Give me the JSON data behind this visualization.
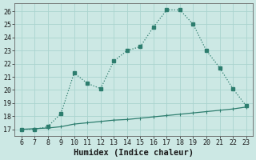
{
  "x_main": [
    6,
    7,
    8,
    9,
    10,
    11,
    12,
    13,
    14,
    15,
    16,
    17,
    18,
    19,
    20,
    21,
    22,
    23
  ],
  "y_main": [
    17.0,
    17.0,
    17.2,
    18.2,
    21.3,
    20.5,
    20.1,
    22.2,
    23.0,
    23.3,
    24.8,
    26.1,
    26.1,
    25.0,
    23.0,
    21.7,
    20.1,
    18.8
  ],
  "x_flat": [
    6,
    7,
    8,
    9,
    10,
    11,
    12,
    13,
    14,
    15,
    16,
    17,
    18,
    19,
    20,
    21,
    22,
    23
  ],
  "y_flat": [
    17.0,
    17.05,
    17.1,
    17.2,
    17.4,
    17.5,
    17.6,
    17.7,
    17.75,
    17.85,
    17.95,
    18.05,
    18.15,
    18.25,
    18.35,
    18.45,
    18.55,
    18.7
  ],
  "line_color": "#2d7d6e",
  "bg_color": "#cce8e4",
  "grid_color": "#aad4cf",
  "xlabel": "Humidex (Indice chaleur)",
  "xlim": [
    5.5,
    23.5
  ],
  "ylim": [
    16.5,
    26.6
  ],
  "xticks": [
    6,
    7,
    8,
    9,
    10,
    11,
    12,
    13,
    14,
    15,
    16,
    17,
    18,
    19,
    20,
    21,
    22,
    23
  ],
  "yticks": [
    17,
    18,
    19,
    20,
    21,
    22,
    23,
    24,
    25,
    26
  ],
  "tick_fontsize": 6,
  "xlabel_fontsize": 7.5,
  "marker_size": 2.5,
  "line_width": 1.0
}
